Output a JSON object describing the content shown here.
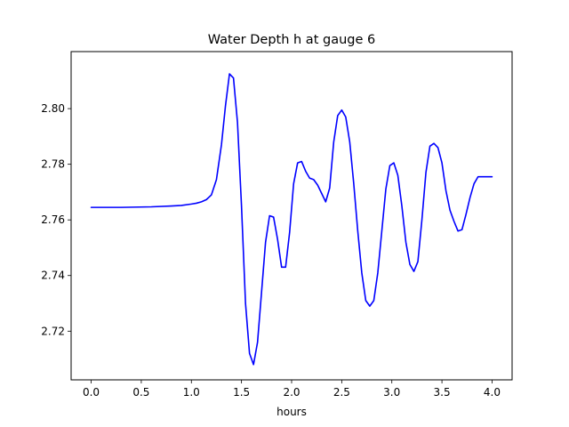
{
  "chart_data": {
    "type": "line",
    "title": "Water Depth h at gauge 6",
    "xlabel": "hours",
    "ylabel": "",
    "xlim": [
      -0.2,
      4.2
    ],
    "ylim": [
      2.7025,
      2.8205
    ],
    "xticks": [
      0.0,
      0.5,
      1.0,
      1.5,
      2.0,
      2.5,
      3.0,
      3.5,
      4.0
    ],
    "xtick_labels": [
      "0.0",
      "0.5",
      "1.0",
      "1.5",
      "2.0",
      "2.5",
      "3.0",
      "3.5",
      "4.0"
    ],
    "yticks": [
      2.72,
      2.74,
      2.76,
      2.78,
      2.8
    ],
    "ytick_labels": [
      "2.72",
      "2.74",
      "2.76",
      "2.78",
      "2.80"
    ],
    "grid": false,
    "series": [
      {
        "color": "#0000ff",
        "x": [
          0.0,
          0.3,
          0.6,
          0.8,
          0.9,
          1.0,
          1.05,
          1.1,
          1.15,
          1.2,
          1.25,
          1.3,
          1.34,
          1.38,
          1.42,
          1.46,
          1.5,
          1.54,
          1.58,
          1.62,
          1.66,
          1.7,
          1.74,
          1.78,
          1.82,
          1.86,
          1.9,
          1.94,
          1.98,
          2.02,
          2.06,
          2.1,
          2.14,
          2.18,
          2.22,
          2.26,
          2.3,
          2.34,
          2.38,
          2.42,
          2.46,
          2.5,
          2.54,
          2.58,
          2.62,
          2.66,
          2.7,
          2.74,
          2.78,
          2.82,
          2.86,
          2.9,
          2.94,
          2.98,
          3.02,
          3.06,
          3.1,
          3.14,
          3.18,
          3.22,
          3.26,
          3.3,
          3.34,
          3.38,
          3.42,
          3.46,
          3.5,
          3.54,
          3.58,
          3.62,
          3.66,
          3.7,
          3.74,
          3.78,
          3.82,
          3.86,
          3.9,
          3.94,
          3.98,
          4.0
        ],
        "y": [
          2.7645,
          2.7645,
          2.7647,
          2.765,
          2.7652,
          2.7657,
          2.766,
          2.7665,
          2.7673,
          2.769,
          2.7745,
          2.787,
          2.801,
          2.8125,
          2.811,
          2.795,
          2.765,
          2.73,
          2.712,
          2.708,
          2.716,
          2.734,
          2.752,
          2.7615,
          2.761,
          2.753,
          2.743,
          2.743,
          2.7555,
          2.773,
          2.7805,
          2.781,
          2.7775,
          2.775,
          2.7745,
          2.7725,
          2.7695,
          2.7665,
          2.7715,
          2.788,
          2.7975,
          2.7995,
          2.797,
          2.788,
          2.773,
          2.756,
          2.741,
          2.731,
          2.729,
          2.731,
          2.741,
          2.756,
          2.771,
          2.7795,
          2.7805,
          2.776,
          2.765,
          2.752,
          2.744,
          2.7415,
          2.745,
          2.76,
          2.777,
          2.7865,
          2.7875,
          2.786,
          2.7805,
          2.7705,
          2.7635,
          2.7595,
          2.756,
          2.7565,
          2.762,
          2.768,
          2.773,
          2.7755,
          2.7755,
          2.7755,
          2.7755,
          2.7755
        ]
      }
    ]
  }
}
